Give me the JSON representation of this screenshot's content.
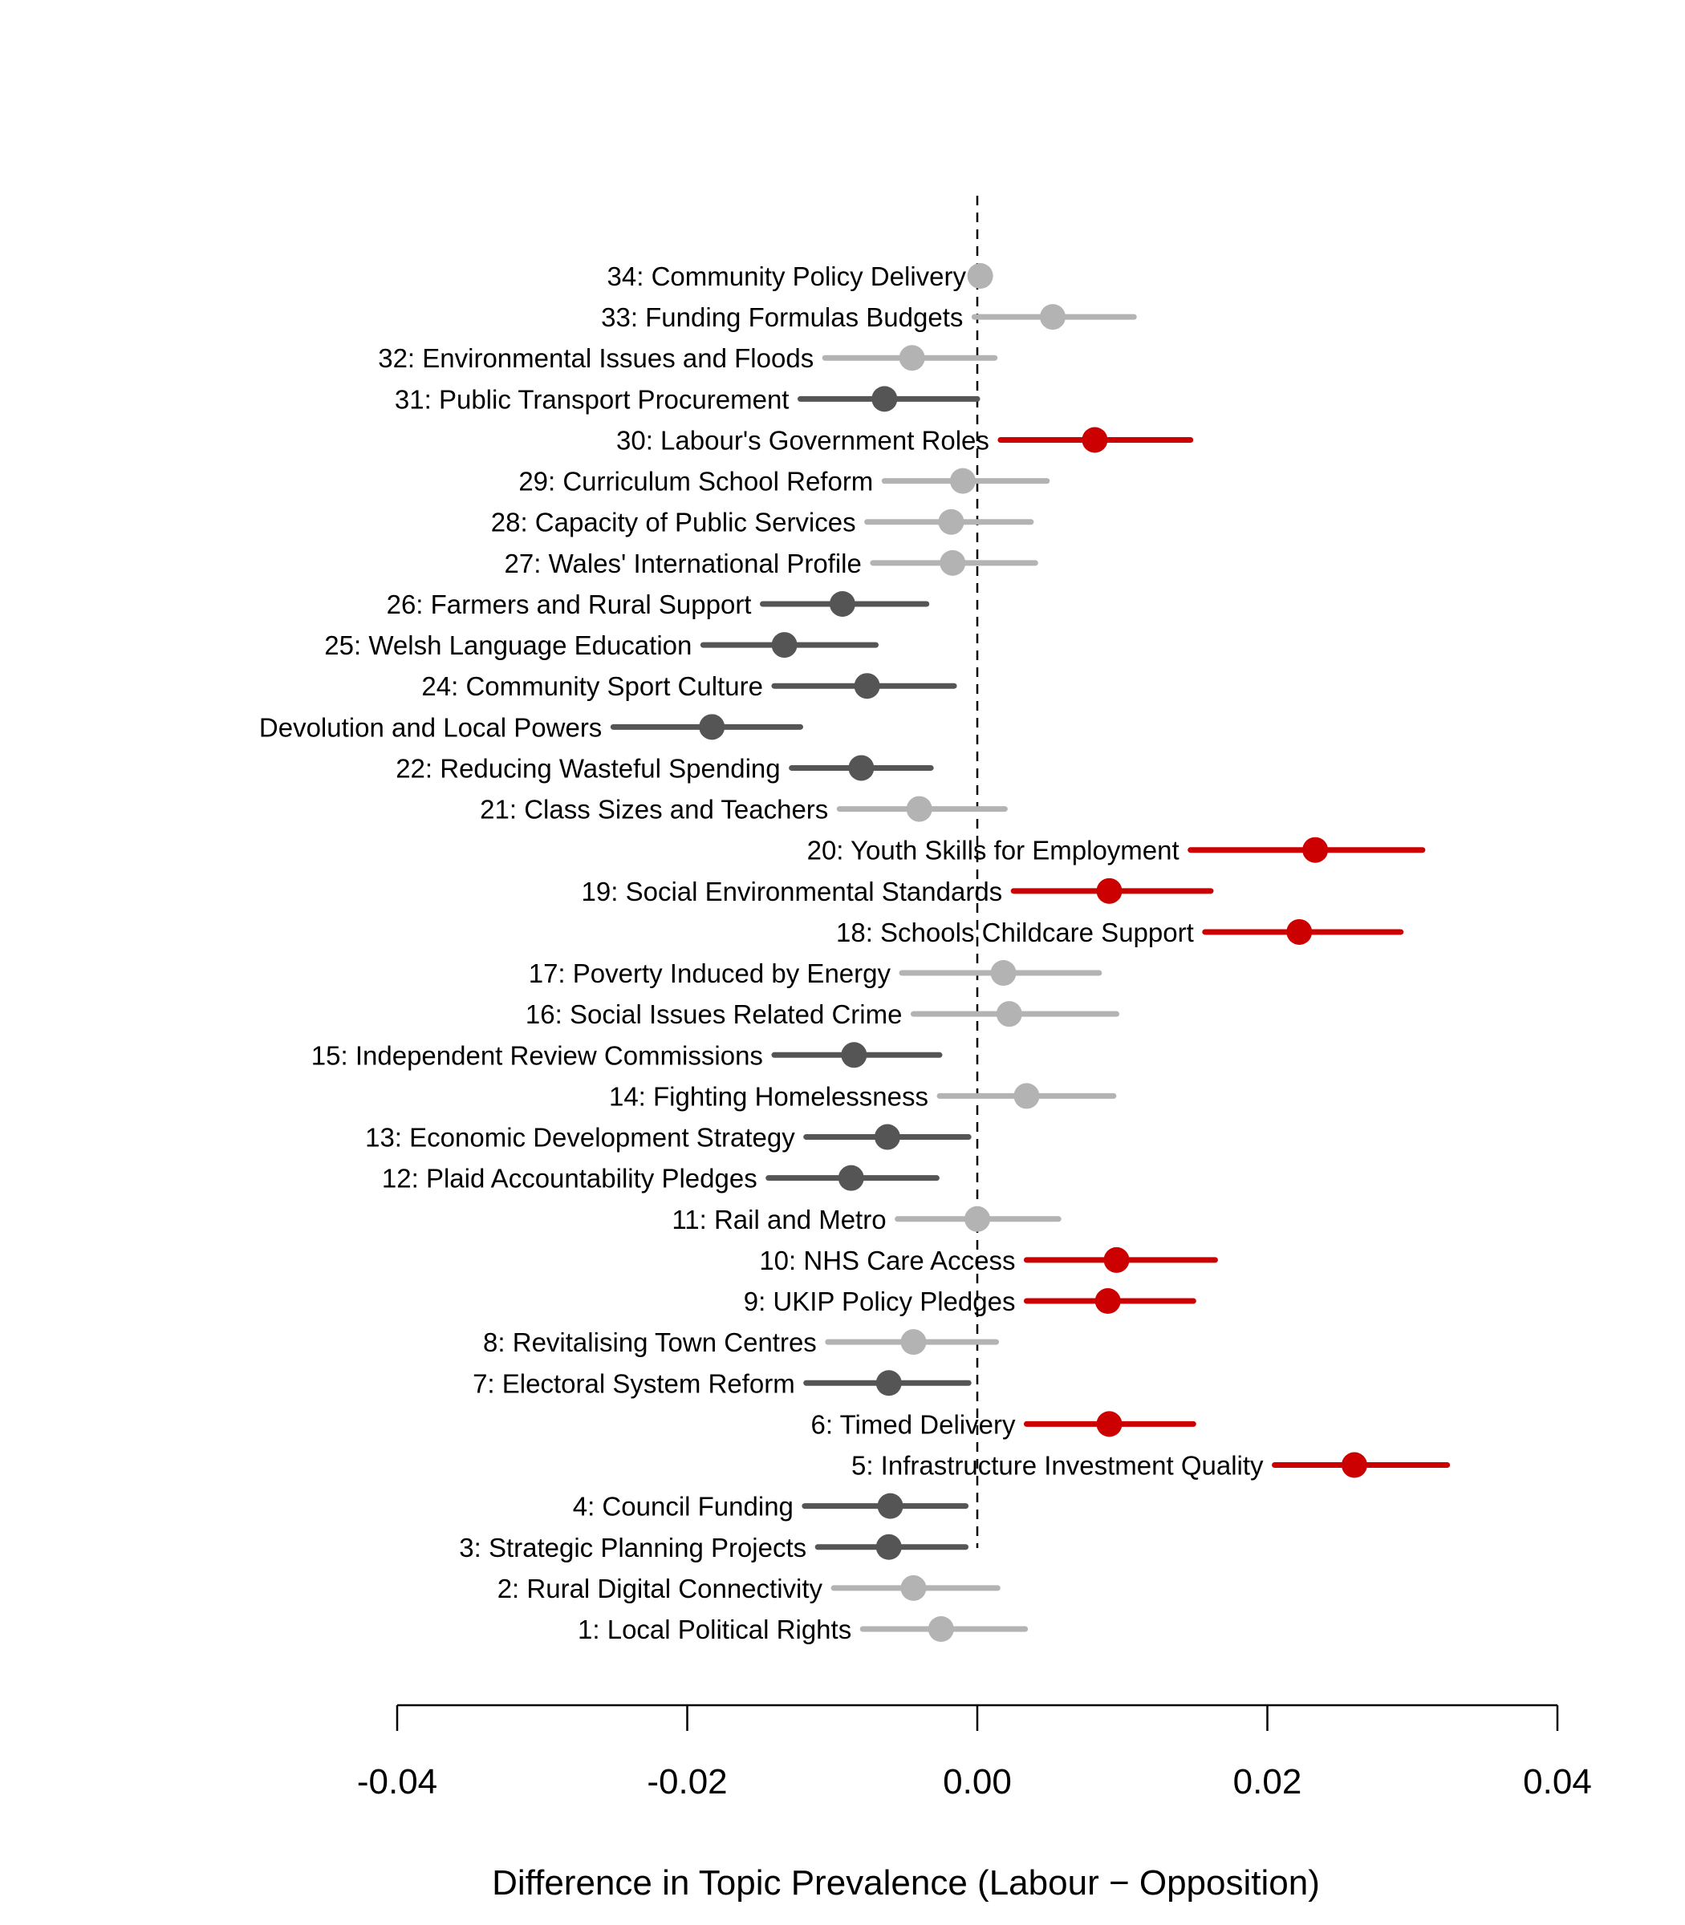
{
  "chart_data": {
    "type": "scatter",
    "subtype": "coefficient-plot",
    "title": "",
    "xlabel": "Difference in Topic Prevalence (Labour − Opposition)",
    "ylabel": "",
    "xlim": [
      -0.04,
      0.04
    ],
    "x_ticks": [
      "-0.04",
      "-0.02",
      "0.00",
      "0.02",
      "0.04"
    ],
    "x_tick_values": [
      -0.04,
      -0.02,
      0.0,
      0.02,
      0.04
    ],
    "reference_line": 0,
    "grid": false,
    "colors": {
      "positive_significant": "#cc0000",
      "negative_significant": "#555555",
      "not_significant": "#b3b3b3",
      "reference_line": "#000000"
    },
    "topics": [
      {
        "id": 34,
        "label": "34: Community Policy Delivery",
        "estimate": 0.0002,
        "lower": 0.0,
        "upper": 0.0004,
        "group": "not_significant"
      },
      {
        "id": 33,
        "label": "33: Funding Formulas Budgets",
        "estimate": 0.0052,
        "lower": -0.0002,
        "upper": 0.0108,
        "group": "not_significant"
      },
      {
        "id": 32,
        "label": "32: Environmental Issues and Floods",
        "estimate": -0.0045,
        "lower": -0.0105,
        "upper": 0.0012,
        "group": "not_significant"
      },
      {
        "id": 31,
        "label": "31: Public Transport Procurement",
        "estimate": -0.0064,
        "lower": -0.0122,
        "upper": 0.0,
        "group": "negative_significant"
      },
      {
        "id": 30,
        "label": "30: Labour's Government Roles",
        "estimate": 0.0081,
        "lower": 0.0016,
        "upper": 0.0147,
        "group": "positive_significant"
      },
      {
        "id": 29,
        "label": "29: Curriculum School Reform",
        "estimate": -0.001,
        "lower": -0.0064,
        "upper": 0.0048,
        "group": "not_significant"
      },
      {
        "id": 28,
        "label": "28: Capacity of Public Services",
        "estimate": -0.0018,
        "lower": -0.0076,
        "upper": 0.0037,
        "group": "not_significant"
      },
      {
        "id": 27,
        "label": "27: Wales' International Profile",
        "estimate": -0.0017,
        "lower": -0.0072,
        "upper": 0.004,
        "group": "not_significant"
      },
      {
        "id": 26,
        "label": "26: Farmers and Rural Support",
        "estimate": -0.0093,
        "lower": -0.0148,
        "upper": -0.0035,
        "group": "negative_significant"
      },
      {
        "id": 25,
        "label": "25: Welsh Language Education",
        "estimate": -0.0133,
        "lower": -0.0189,
        "upper": -0.007,
        "group": "negative_significant"
      },
      {
        "id": 24,
        "label": "24: Community Sport Culture",
        "estimate": -0.0076,
        "lower": -0.014,
        "upper": -0.0016,
        "group": "negative_significant"
      },
      {
        "id": 23,
        "label": "Devolution and Local Powers",
        "estimate": -0.0183,
        "lower": -0.0251,
        "upper": -0.0122,
        "group": "negative_significant"
      },
      {
        "id": 22,
        "label": "22: Reducing Wasteful Spending",
        "estimate": -0.008,
        "lower": -0.0128,
        "upper": -0.0032,
        "group": "negative_significant"
      },
      {
        "id": 21,
        "label": "21: Class Sizes and Teachers",
        "estimate": -0.004,
        "lower": -0.0095,
        "upper": 0.0019,
        "group": "not_significant"
      },
      {
        "id": 20,
        "label": "20: Youth Skills for Employment",
        "estimate": 0.0233,
        "lower": 0.0147,
        "upper": 0.0307,
        "group": "positive_significant"
      },
      {
        "id": 19,
        "label": "19: Social Environmental Standards",
        "estimate": 0.0091,
        "lower": 0.0025,
        "upper": 0.0161,
        "group": "positive_significant"
      },
      {
        "id": 18,
        "label": "18: Schools Childcare Support",
        "estimate": 0.0222,
        "lower": 0.0157,
        "upper": 0.0292,
        "group": "positive_significant"
      },
      {
        "id": 17,
        "label": "17: Poverty Induced by Energy",
        "estimate": 0.0018,
        "lower": -0.0052,
        "upper": 0.0084,
        "group": "not_significant"
      },
      {
        "id": 16,
        "label": "16: Social Issues Related Crime",
        "estimate": 0.0022,
        "lower": -0.0044,
        "upper": 0.0096,
        "group": "not_significant"
      },
      {
        "id": 15,
        "label": "15: Independent Review Commissions",
        "estimate": -0.0085,
        "lower": -0.014,
        "upper": -0.0026,
        "group": "negative_significant"
      },
      {
        "id": 14,
        "label": "14: Fighting Homelessness",
        "estimate": 0.0034,
        "lower": -0.0026,
        "upper": 0.0094,
        "group": "not_significant"
      },
      {
        "id": 13,
        "label": "13: Economic Development Strategy",
        "estimate": -0.0062,
        "lower": -0.0118,
        "upper": -0.0006,
        "group": "negative_significant"
      },
      {
        "id": 12,
        "label": "12: Plaid Accountability Pledges",
        "estimate": -0.0087,
        "lower": -0.0144,
        "upper": -0.0028,
        "group": "negative_significant"
      },
      {
        "id": 11,
        "label": "11: Rail and Metro",
        "estimate": 0.0,
        "lower": -0.0055,
        "upper": 0.0056,
        "group": "not_significant"
      },
      {
        "id": 10,
        "label": "10: NHS Care Access",
        "estimate": 0.0096,
        "lower": 0.0034,
        "upper": 0.0164,
        "group": "positive_significant"
      },
      {
        "id": 9,
        "label": "9: UKIP Policy Pledges",
        "estimate": 0.009,
        "lower": 0.0034,
        "upper": 0.0149,
        "group": "positive_significant"
      },
      {
        "id": 8,
        "label": "8: Revitalising Town Centres",
        "estimate": -0.0044,
        "lower": -0.0103,
        "upper": 0.0013,
        "group": "not_significant"
      },
      {
        "id": 7,
        "label": "7: Electoral System Reform",
        "estimate": -0.0061,
        "lower": -0.0118,
        "upper": -0.0006,
        "group": "negative_significant"
      },
      {
        "id": 6,
        "label": "6: Timed Delivery",
        "estimate": 0.0091,
        "lower": 0.0034,
        "upper": 0.0149,
        "group": "positive_significant"
      },
      {
        "id": 5,
        "label": "5: Infrastructure Investment Quality",
        "estimate": 0.026,
        "lower": 0.0205,
        "upper": 0.0324,
        "group": "positive_significant"
      },
      {
        "id": 4,
        "label": "4: Council Funding",
        "estimate": -0.006,
        "lower": -0.0119,
        "upper": -0.0008,
        "group": "negative_significant"
      },
      {
        "id": 3,
        "label": "3: Strategic Planning Projects",
        "estimate": -0.0061,
        "lower": -0.011,
        "upper": -0.0008,
        "group": "negative_significant"
      },
      {
        "id": 2,
        "label": "2: Rural Digital Connectivity",
        "estimate": -0.0044,
        "lower": -0.0099,
        "upper": 0.0014,
        "group": "not_significant"
      },
      {
        "id": 1,
        "label": "1: Local Political Rights",
        "estimate": -0.0025,
        "lower": -0.0079,
        "upper": 0.0033,
        "group": "not_significant"
      }
    ]
  }
}
